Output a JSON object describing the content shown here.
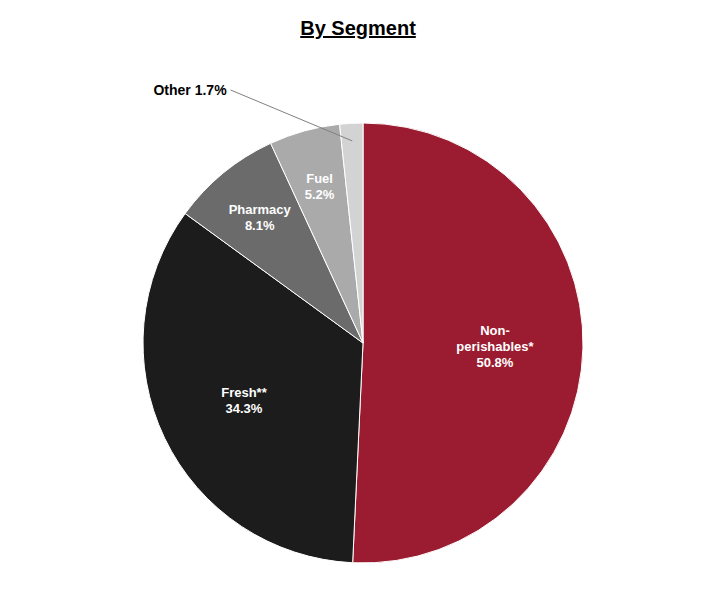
{
  "chart_data": {
    "type": "pie",
    "title": "By Segment",
    "categories": [
      "Non-\nperishables*\n50.8%",
      "Fresh**\n34.3%",
      "Pharmacy\n8.1%",
      "Fuel\n5.2%",
      null
    ],
    "values": [
      50.8,
      34.3,
      8.1,
      5.2,
      1.7
    ],
    "colors": [
      "#9B1B30",
      "#1C1C1C",
      "#6B6B6B",
      "#AAAAAA",
      "#D3D3D3"
    ],
    "annotations": [
      "Other 1.7%"
    ]
  }
}
